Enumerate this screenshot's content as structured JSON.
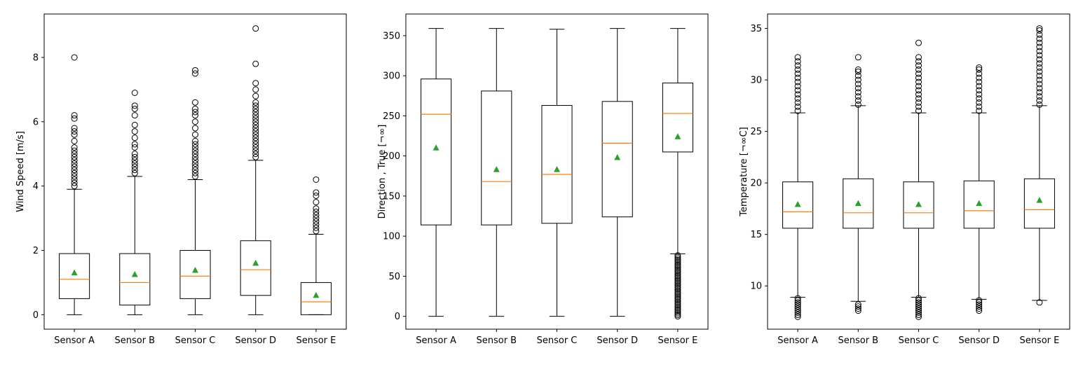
{
  "chart_data": [
    {
      "type": "box",
      "ylabel": "Wind Speed [m/s]",
      "ylim": [
        -0.45,
        9.35
      ],
      "yticks": [
        0,
        2,
        4,
        6,
        8
      ],
      "categories": [
        "Sensor A",
        "Sensor B",
        "Sensor C",
        "Sensor D",
        "Sensor E"
      ],
      "boxes": [
        {
          "whislo": 0,
          "q1": 0.5,
          "med": 1.1,
          "q3": 1.9,
          "whishi": 3.9,
          "mean": 1.3,
          "fliers": [
            4.0,
            4.1,
            4.2,
            4.3,
            4.4,
            4.5,
            4.6,
            4.7,
            4.8,
            4.9,
            5.0,
            5.1,
            5.2,
            5.4,
            5.6,
            5.7,
            5.8,
            6.1,
            6.2,
            8.0
          ]
        },
        {
          "whislo": 0,
          "q1": 0.3,
          "med": 1.0,
          "q3": 1.9,
          "whishi": 4.3,
          "mean": 1.25,
          "fliers": [
            4.4,
            4.5,
            4.6,
            4.7,
            4.8,
            4.9,
            5.0,
            5.2,
            5.3,
            5.5,
            5.7,
            5.9,
            6.2,
            6.4,
            6.5,
            6.9
          ]
        },
        {
          "whislo": 0,
          "q1": 0.5,
          "med": 1.2,
          "q3": 2.0,
          "whishi": 4.2,
          "mean": 1.38,
          "fliers": [
            4.3,
            4.4,
            4.5,
            4.6,
            4.7,
            4.8,
            4.9,
            5.0,
            5.1,
            5.2,
            5.3,
            5.4,
            5.6,
            5.8,
            6.0,
            6.2,
            6.3,
            6.4,
            6.6,
            7.5,
            7.6
          ]
        },
        {
          "whislo": 0,
          "q1": 0.6,
          "med": 1.4,
          "q3": 2.3,
          "whishi": 4.8,
          "mean": 1.6,
          "fliers": [
            4.9,
            5.0,
            5.1,
            5.2,
            5.3,
            5.4,
            5.5,
            5.6,
            5.7,
            5.8,
            5.9,
            6.0,
            6.1,
            6.2,
            6.3,
            6.4,
            6.5,
            6.6,
            6.8,
            7.0,
            7.2,
            7.8,
            8.9
          ]
        },
        {
          "whislo": 0,
          "q1": 0.0,
          "med": 0.4,
          "q3": 1.0,
          "whishi": 2.5,
          "mean": 0.6,
          "fliers": [
            2.6,
            2.7,
            2.8,
            2.9,
            3.0,
            3.1,
            3.2,
            3.3,
            3.5,
            3.7,
            3.8,
            4.2
          ]
        }
      ]
    },
    {
      "type": "box",
      "ylabel": "Direction , True [¬∞]",
      "ylim": [
        -16,
        377
      ],
      "yticks": [
        0,
        50,
        100,
        150,
        200,
        250,
        300,
        350
      ],
      "categories": [
        "Sensor A",
        "Sensor B",
        "Sensor C",
        "Sensor D",
        "Sensor E"
      ],
      "boxes": [
        {
          "whislo": 0,
          "q1": 114,
          "med": 252,
          "q3": 296,
          "whishi": 359,
          "mean": 210,
          "fliers": []
        },
        {
          "whislo": 0,
          "q1": 114,
          "med": 168,
          "q3": 281,
          "whishi": 359,
          "mean": 183,
          "fliers": []
        },
        {
          "whislo": 0,
          "q1": 116,
          "med": 177,
          "q3": 263,
          "whishi": 358,
          "mean": 183,
          "fliers": []
        },
        {
          "whislo": 0,
          "q1": 124,
          "med": 216,
          "q3": 268,
          "whishi": 359,
          "mean": 198,
          "fliers": []
        },
        {
          "whislo": 78,
          "q1": 205,
          "med": 253,
          "q3": 291,
          "whishi": 359,
          "mean": 224,
          "fliers": [
            0,
            2,
            4,
            6,
            8,
            10,
            12,
            14,
            16,
            18,
            20,
            22,
            24,
            26,
            28,
            30,
            32,
            34,
            36,
            38,
            40,
            42,
            44,
            46,
            48,
            50,
            52,
            54,
            56,
            58,
            60,
            62,
            64,
            66,
            68,
            70,
            72,
            74,
            76
          ]
        }
      ]
    },
    {
      "type": "box",
      "ylabel": "Temperature [¬∞C]",
      "ylim": [
        5.8,
        36.4
      ],
      "yticks": [
        10,
        15,
        20,
        25,
        30,
        35
      ],
      "categories": [
        "Sensor A",
        "Sensor B",
        "Sensor C",
        "Sensor D",
        "Sensor E"
      ],
      "boxes": [
        {
          "whislo": 8.9,
          "q1": 15.6,
          "med": 17.2,
          "q3": 20.1,
          "whishi": 26.8,
          "mean": 17.9,
          "fliers": [
            7.0,
            7.2,
            7.4,
            7.6,
            7.8,
            8.0,
            8.2,
            8.4,
            8.6,
            8.8,
            27.0,
            27.4,
            27.8,
            28.2,
            28.6,
            29.0,
            29.4,
            29.8,
            30.2,
            30.6,
            31.0,
            31.4,
            31.8,
            32.2
          ]
        },
        {
          "whislo": 8.5,
          "q1": 15.6,
          "med": 17.1,
          "q3": 20.4,
          "whishi": 27.5,
          "mean": 18.0,
          "fliers": [
            7.6,
            7.8,
            8.0,
            8.2,
            27.6,
            28.0,
            28.4,
            28.8,
            29.2,
            29.6,
            30.0,
            30.4,
            30.8,
            31.0,
            32.2
          ]
        },
        {
          "whislo": 8.9,
          "q1": 15.6,
          "med": 17.1,
          "q3": 20.1,
          "whishi": 26.8,
          "mean": 17.9,
          "fliers": [
            7.0,
            7.2,
            7.4,
            7.6,
            7.8,
            8.0,
            8.2,
            8.4,
            8.6,
            8.8,
            27.0,
            27.4,
            27.8,
            28.2,
            28.6,
            29.0,
            29.4,
            29.8,
            30.2,
            30.6,
            31.0,
            31.4,
            31.8,
            32.2,
            33.6
          ]
        },
        {
          "whislo": 8.7,
          "q1": 15.6,
          "med": 17.3,
          "q3": 20.2,
          "whishi": 26.8,
          "mean": 18.0,
          "fliers": [
            7.6,
            7.8,
            8.0,
            8.2,
            8.4,
            8.6,
            27.0,
            27.4,
            27.8,
            28.2,
            28.6,
            29.0,
            29.4,
            29.8,
            30.2,
            30.6,
            31.0,
            31.2
          ]
        },
        {
          "whislo": 8.6,
          "q1": 15.6,
          "med": 17.4,
          "q3": 20.4,
          "whishi": 27.5,
          "mean": 18.3,
          "fliers": [
            8.4,
            27.6,
            28.0,
            28.4,
            28.8,
            29.2,
            29.6,
            30.0,
            30.4,
            30.8,
            31.2,
            31.6,
            32.0,
            32.4,
            32.8,
            33.2,
            33.6,
            34.0,
            34.4,
            34.8,
            35.0
          ]
        }
      ]
    }
  ],
  "style": {
    "box_color": "#000000",
    "median_color": "#ff7f0e",
    "mean_color": "#2ca02c"
  }
}
